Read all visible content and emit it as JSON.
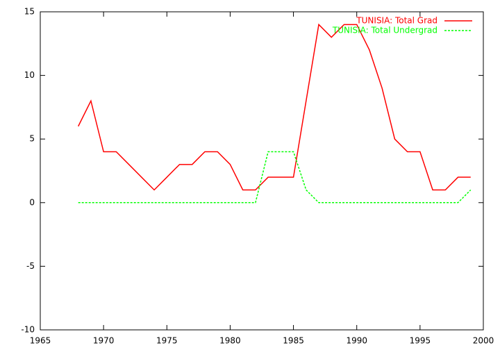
{
  "chart_data": {
    "type": "line",
    "x": [
      1968,
      1969,
      1970,
      1971,
      1972,
      1973,
      1974,
      1975,
      1976,
      1977,
      1978,
      1979,
      1980,
      1981,
      1982,
      1983,
      1984,
      1985,
      1986,
      1987,
      1988,
      1989,
      1990,
      1991,
      1992,
      1993,
      1994,
      1995,
      1996,
      1997,
      1998,
      1999
    ],
    "series": [
      {
        "name": "TUNISIA: Total Grad",
        "color": "#ff0000",
        "dash": false,
        "values": [
          6,
          8,
          4,
          4,
          3,
          2,
          1,
          2,
          3,
          3,
          4,
          4,
          3,
          1,
          1,
          2,
          2,
          2,
          8,
          14,
          13,
          14,
          14,
          12,
          9,
          5,
          4,
          4,
          1,
          1,
          2,
          2
        ]
      },
      {
        "name": "TUNISIA: Total Undergrad",
        "color": "#00ff00",
        "dash": true,
        "values": [
          0,
          0,
          0,
          0,
          0,
          0,
          0,
          0,
          0,
          0,
          0,
          0,
          0,
          0,
          0,
          4,
          4,
          4,
          1,
          0,
          0,
          0,
          0,
          0,
          0,
          0,
          0,
          0,
          0,
          0,
          0,
          1
        ]
      }
    ],
    "xlim": [
      1965,
      2000
    ],
    "xticks": [
      1965,
      1970,
      1975,
      1980,
      1985,
      1990,
      1995,
      2000
    ],
    "ylim": [
      -10,
      15
    ],
    "yticks": [
      -10,
      -5,
      0,
      5,
      10,
      15
    ],
    "grid": false,
    "legend": "top-right"
  }
}
